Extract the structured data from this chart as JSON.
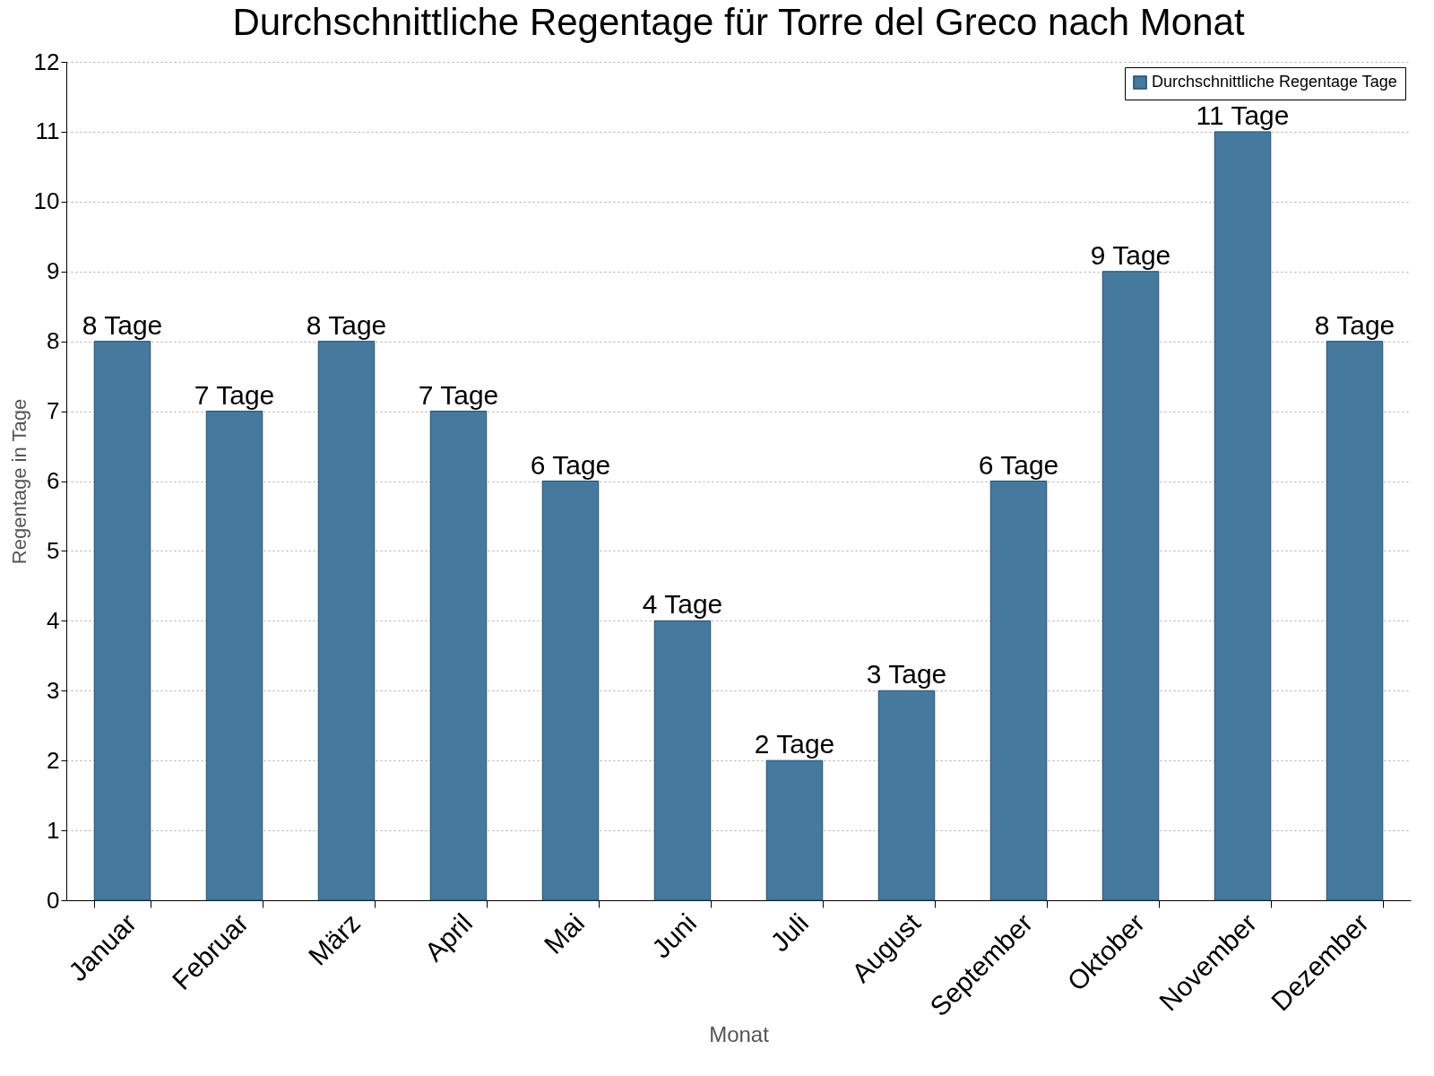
{
  "chart_data": {
    "type": "bar",
    "title": "Durchschnittliche Regentage für Torre del Greco nach Monat",
    "xlabel": "Monat",
    "ylabel": "Regentage in Tage",
    "categories": [
      "Januar",
      "Februar",
      "März",
      "April",
      "Mai",
      "Juni",
      "Juli",
      "August",
      "September",
      "Oktober",
      "November",
      "Dezember"
    ],
    "series": [
      {
        "name": "Durchschnittliche Regentage Tage",
        "color": "#46799e",
        "values": [
          8,
          7,
          8,
          7,
          6,
          4,
          2,
          3,
          6,
          9,
          11,
          8
        ],
        "value_labels": [
          "8 Tage",
          "7 Tage",
          "8 Tage",
          "7 Tage",
          "6 Tage",
          "4 Tage",
          "2 Tage",
          "3 Tage",
          "6 Tage",
          "9 Tage",
          "11 Tage",
          "8 Tage"
        ]
      }
    ],
    "ylim": [
      0,
      12
    ],
    "yticks": [
      0,
      1,
      2,
      3,
      4,
      5,
      6,
      7,
      8,
      9,
      10,
      11,
      12
    ],
    "grid": "y",
    "legend": "top right"
  }
}
